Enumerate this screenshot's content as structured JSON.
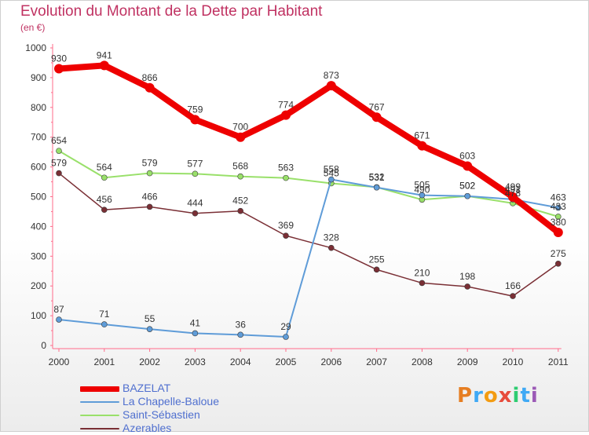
{
  "title": "Evolution du Montant de la Dette par Habitant",
  "subtitle": "(en €)",
  "logo_text": "Proxiti",
  "chart_data": {
    "type": "line",
    "x": [
      "2000",
      "2001",
      "2002",
      "2003",
      "2004",
      "2005",
      "2006",
      "2007",
      "2008",
      "2009",
      "2010",
      "2011"
    ],
    "ylim": [
      0,
      1000
    ],
    "yticks": [
      0,
      100,
      200,
      300,
      400,
      500,
      600,
      700,
      800,
      900,
      1000
    ],
    "grid": false,
    "legend_position": "bottom-left",
    "series": [
      {
        "name": "BAZELAT",
        "color": "#ee0000",
        "values": [
          930,
          941,
          866,
          759,
          700,
          774,
          873,
          767,
          671,
          603,
          499,
          380
        ]
      },
      {
        "name": "La Chapelle-Baloue",
        "color": "#5f9cd8",
        "values": [
          87,
          71,
          55,
          41,
          36,
          29,
          558,
          531,
          505,
          502,
          491,
          463
        ]
      },
      {
        "name": "Saint-Sébastien",
        "color": "#99e06a",
        "values": [
          654,
          564,
          579,
          577,
          568,
          563,
          545,
          532,
          490,
          502,
          478,
          433
        ]
      },
      {
        "name": "Azerables",
        "color": "#7a2f35",
        "values": [
          579,
          456,
          466,
          444,
          452,
          369,
          328,
          255,
          210,
          198,
          166,
          275
        ]
      }
    ]
  }
}
